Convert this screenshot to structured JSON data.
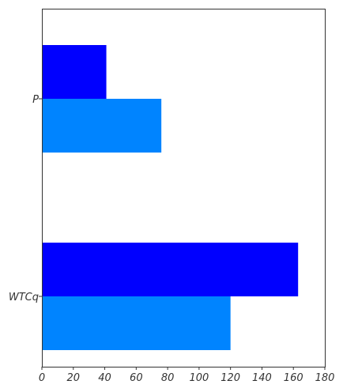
{
  "chart_data": {
    "type": "bar",
    "orientation": "horizontal",
    "categories": [
      "P",
      "WTCq"
    ],
    "series": [
      {
        "color": "#0000ff",
        "values": [
          41,
          163
        ]
      },
      {
        "color": "#0084ff",
        "values": [
          76,
          120
        ]
      }
    ],
    "xlim": [
      0,
      180
    ],
    "xticks": [
      "0",
      "20",
      "40",
      "60",
      "80",
      "100",
      "120",
      "140",
      "160",
      "180"
    ],
    "grid": false,
    "legend": "none",
    "title": "",
    "xlabel": "",
    "ylabel": ""
  }
}
